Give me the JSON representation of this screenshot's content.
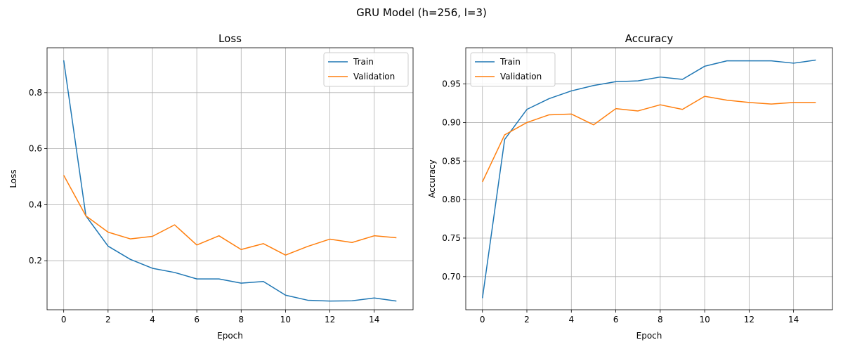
{
  "figure": {
    "title": "GRU Model (h=256, l=3)"
  },
  "chart_data": [
    {
      "type": "line",
      "title": "Loss",
      "xlabel": "Epoch",
      "ylabel": "Loss",
      "xlim": [
        -0.75,
        15.75
      ],
      "ylim": [
        0.025,
        0.96
      ],
      "xticks": [
        0,
        2,
        4,
        6,
        8,
        10,
        12,
        14
      ],
      "yticks": [
        0.2,
        0.4,
        0.6,
        0.8
      ],
      "grid": true,
      "legend": "top-right",
      "x": [
        0,
        1,
        2,
        3,
        4,
        5,
        6,
        7,
        8,
        9,
        10,
        11,
        12,
        13,
        14,
        15
      ],
      "series": [
        {
          "name": "Train",
          "color": "#1f77b4",
          "values": [
            0.915,
            0.36,
            0.252,
            0.205,
            0.173,
            0.158,
            0.135,
            0.135,
            0.12,
            0.126,
            0.077,
            0.059,
            0.056,
            0.057,
            0.067,
            0.056
          ]
        },
        {
          "name": "Validation",
          "color": "#ff7f0e",
          "values": [
            0.505,
            0.36,
            0.302,
            0.278,
            0.287,
            0.328,
            0.256,
            0.289,
            0.24,
            0.261,
            0.22,
            0.251,
            0.277,
            0.265,
            0.289,
            0.282
          ]
        }
      ]
    },
    {
      "type": "line",
      "title": "Accuracy",
      "xlabel": "Epoch",
      "ylabel": "Accuracy",
      "xlim": [
        -0.75,
        15.75
      ],
      "ylim": [
        0.657,
        0.997
      ],
      "xticks": [
        0,
        2,
        4,
        6,
        8,
        10,
        12,
        14
      ],
      "yticks": [
        0.7,
        0.75,
        0.8,
        0.85,
        0.9,
        0.95
      ],
      "grid": true,
      "legend": "top-left",
      "x": [
        0,
        1,
        2,
        3,
        4,
        5,
        6,
        7,
        8,
        9,
        10,
        11,
        12,
        13,
        14,
        15
      ],
      "series": [
        {
          "name": "Train",
          "color": "#1f77b4",
          "values": [
            0.672,
            0.878,
            0.917,
            0.931,
            0.941,
            0.948,
            0.953,
            0.954,
            0.959,
            0.956,
            0.973,
            0.98,
            0.98,
            0.98,
            0.977,
            0.981
          ]
        },
        {
          "name": "Validation",
          "color": "#ff7f0e",
          "values": [
            0.823,
            0.884,
            0.9,
            0.91,
            0.911,
            0.897,
            0.918,
            0.915,
            0.923,
            0.917,
            0.934,
            0.929,
            0.926,
            0.924,
            0.926,
            0.926
          ]
        }
      ]
    }
  ]
}
